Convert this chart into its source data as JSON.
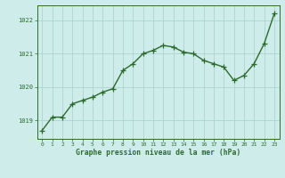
{
  "x": [
    0,
    1,
    2,
    3,
    4,
    5,
    6,
    7,
    8,
    9,
    10,
    11,
    12,
    13,
    14,
    15,
    16,
    17,
    18,
    19,
    20,
    21,
    22,
    23
  ],
  "y": [
    1018.7,
    1019.1,
    1019.1,
    1019.5,
    1019.6,
    1019.7,
    1019.85,
    1019.95,
    1020.5,
    1020.7,
    1021.0,
    1021.1,
    1021.25,
    1021.2,
    1021.05,
    1021.0,
    1020.8,
    1020.7,
    1020.6,
    1020.2,
    1020.35,
    1020.7,
    1021.3,
    1022.2
  ],
  "xlim": [
    -0.5,
    23.5
  ],
  "ylim": [
    1018.45,
    1022.45
  ],
  "yticks": [
    1019,
    1020,
    1021,
    1022
  ],
  "xticks": [
    0,
    1,
    2,
    3,
    4,
    5,
    6,
    7,
    8,
    9,
    10,
    11,
    12,
    13,
    14,
    15,
    16,
    17,
    18,
    19,
    20,
    21,
    22,
    23
  ],
  "line_color": "#2d6a2d",
  "marker_color": "#2d6a2d",
  "bg_color": "#ceecea",
  "grid_color": "#aed4d2",
  "xlabel": "Graphe pression niveau de la mer (hPa)",
  "xlabel_color": "#2d6a2d",
  "tick_color": "#2d6a2d",
  "marker": "+",
  "marker_size": 4,
  "line_width": 1.0
}
